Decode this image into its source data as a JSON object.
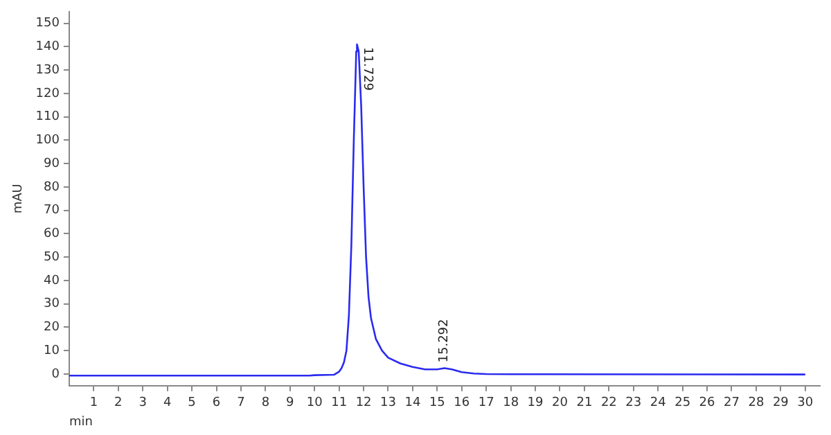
{
  "chart_data": {
    "type": "line",
    "xlabel": "min",
    "ylabel": "mAU",
    "x": [
      0,
      5,
      9.8,
      10,
      10.5,
      10.8,
      11,
      11.1,
      11.2,
      11.3,
      11.4,
      11.5,
      11.6,
      11.7,
      11.73,
      11.8,
      11.9,
      12,
      12.1,
      12.2,
      12.3,
      12.5,
      12.75,
      13,
      13.5,
      14,
      14.5,
      15,
      15.3,
      15.6,
      16,
      16.5,
      17,
      18,
      30
    ],
    "series": [
      {
        "color": "#2a2af0",
        "values": [
          -0.7,
          -0.7,
          -0.7,
          -0.5,
          -0.4,
          -0.3,
          1,
          2.5,
          5,
          10,
          25,
          55,
          100,
          138,
          141,
          138,
          115,
          80,
          50,
          33,
          24,
          15,
          10,
          7,
          4.5,
          3,
          2,
          2,
          2.5,
          2,
          0.8,
          0.2,
          0,
          -0.1,
          -0.2
        ]
      }
    ],
    "xlim": [
      0,
      30.6
    ],
    "ylim": [
      -5,
      155
    ],
    "xticks": [
      1,
      2,
      3,
      4,
      5,
      6,
      7,
      8,
      9,
      10,
      11,
      12,
      13,
      14,
      15,
      16,
      17,
      18,
      19,
      20,
      21,
      22,
      23,
      24,
      25,
      26,
      27,
      28,
      29,
      30
    ],
    "yticks": [
      0,
      10,
      20,
      30,
      40,
      50,
      60,
      70,
      80,
      90,
      100,
      110,
      120,
      130,
      140,
      150
    ],
    "grid": false,
    "legend": false,
    "marker": "none",
    "line_style": "solid",
    "annotations": [
      {
        "text": "11.729",
        "x": 11.729,
        "y": 141
      },
      {
        "text": "15.292",
        "x": 15.292,
        "y": 2.5
      }
    ]
  }
}
